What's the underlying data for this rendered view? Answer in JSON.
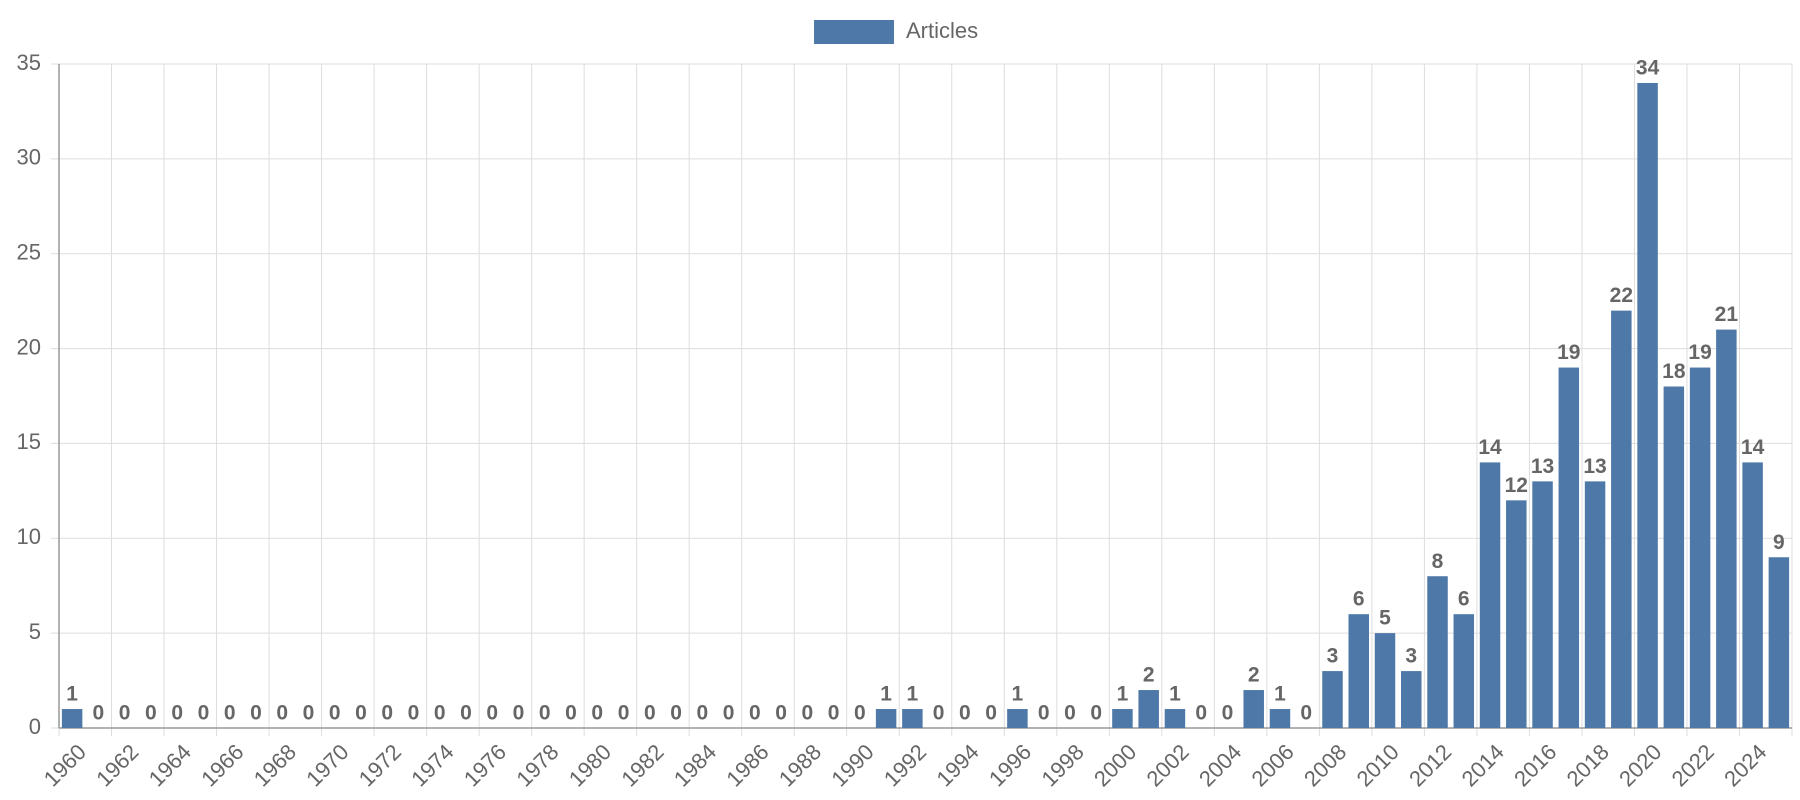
{
  "chart_data": {
    "type": "bar",
    "categories": [
      "1960",
      null,
      "1962",
      null,
      "1964",
      null,
      "1966",
      null,
      "1968",
      null,
      "1970",
      null,
      "1972",
      null,
      "1974",
      null,
      "1976",
      null,
      "1978",
      null,
      "1980",
      null,
      "1982",
      null,
      "1984",
      null,
      "1986",
      null,
      "1988",
      null,
      "1990",
      null,
      "1992",
      null,
      "1994",
      null,
      "1996",
      null,
      "1998",
      null,
      "2000",
      null,
      "2002",
      null,
      "2004",
      null,
      "2006",
      null,
      "2008",
      null,
      "2010",
      null,
      "2012",
      null,
      "2014",
      null,
      "2016",
      null,
      "2018",
      null,
      "2020",
      null,
      "2022",
      null,
      "2024",
      null
    ],
    "series": [
      {
        "name": "Articles",
        "color": "#4d78a8",
        "values": [
          1,
          0,
          0,
          0,
          0,
          0,
          0,
          0,
          0,
          0,
          0,
          0,
          0,
          0,
          0,
          0,
          0,
          0,
          0,
          0,
          0,
          0,
          0,
          0,
          0,
          0,
          0,
          0,
          0,
          0,
          0,
          1,
          1,
          0,
          0,
          0,
          1,
          0,
          0,
          0,
          1,
          2,
          1,
          0,
          0,
          2,
          1,
          0,
          3,
          6,
          5,
          3,
          8,
          6,
          14,
          12,
          13,
          19,
          13,
          22,
          34,
          18,
          19,
          21,
          14,
          9
        ]
      }
    ],
    "ylim": [
      0,
      35
    ],
    "yticks": [
      0,
      5,
      10,
      15,
      20,
      25,
      30,
      35
    ],
    "grid": true,
    "legend": "top"
  }
}
